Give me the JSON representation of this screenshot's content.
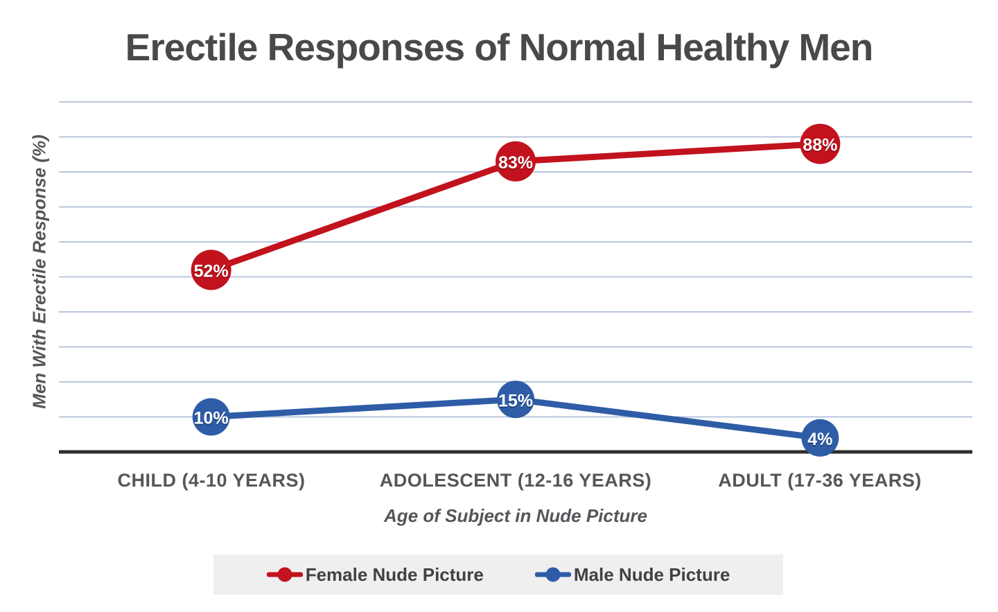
{
  "chart_data": {
    "type": "line",
    "title": "Erectile Responses of Normal Healthy Men",
    "xlabel": "Age of Subject in Nude Picture",
    "ylabel": "Men With Erectile Response (%)",
    "categories": [
      "CHILD (4-10 YEARS)",
      "ADOLESCENT (12-16 YEARS)",
      "ADULT (17-36 YEARS)"
    ],
    "series": [
      {
        "name": "Female Nude Picture",
        "color": "#c2121d",
        "values": [
          52,
          83,
          88
        ],
        "point_labels": [
          "52%",
          "83%",
          "88%"
        ]
      },
      {
        "name": "Male Nude Picture",
        "color": "#2e5ca6",
        "values": [
          10,
          15,
          4
        ],
        "point_labels": [
          "10%",
          "15%",
          "4%"
        ]
      }
    ],
    "ylim": [
      0,
      100
    ],
    "grid": {
      "horizontal": true,
      "step_percent": 10,
      "color": "#b9c4de"
    },
    "axis_line_color": "#2d2d2d",
    "legend_position": "bottom-center",
    "point_label_text_color": "#ffffff"
  }
}
